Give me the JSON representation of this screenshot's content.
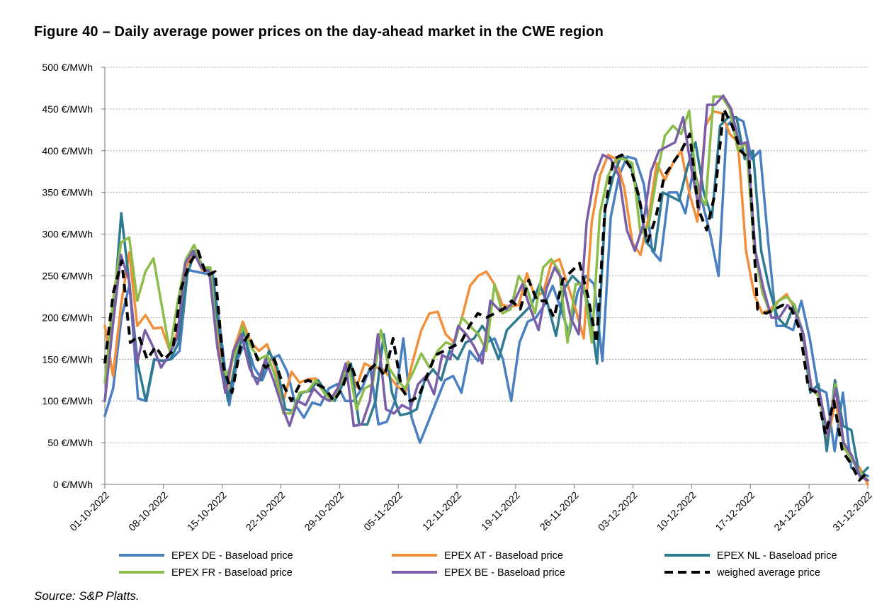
{
  "figure": {
    "title": "Figure 40 – Daily average power prices on the day-ahead market in the CWE region",
    "source": "Source: S&P Platts."
  },
  "chart_data": {
    "type": "line",
    "title": "Daily average power prices on the day-ahead market in the CWE region",
    "xlabel": "",
    "ylabel": "",
    "ylim": [
      0,
      500
    ],
    "y_ticks": [
      0,
      50,
      100,
      150,
      200,
      250,
      300,
      350,
      400,
      450,
      500
    ],
    "y_tick_labels": [
      "0 €/MWh",
      "50 €/MWh",
      "100 €/MWh",
      "150 €/MWh",
      "200 €/MWh",
      "250 €/MWh",
      "300 €/MWh",
      "350 €/MWh",
      "400 €/MWh",
      "450 €/MWh",
      "500 €/MWh"
    ],
    "x_day_range": [
      0,
      91
    ],
    "x_tick_days": [
      0,
      7,
      14,
      21,
      28,
      35,
      42,
      49,
      56,
      63,
      70,
      77,
      84,
      91
    ],
    "x_tick_labels": [
      "01-10-2022",
      "08-10-2022",
      "15-10-2022",
      "22-10-2022",
      "29-10-2022",
      "05-11-2022",
      "12-11-2022",
      "19-11-2022",
      "26-11-2022",
      "03-12-2022",
      "10-12-2022",
      "17-12-2022",
      "24-12-2022",
      "31-12-2022"
    ],
    "grid": true,
    "legend_position": "bottom",
    "series": [
      {
        "name": "EPEX DE - Baseload price",
        "color": "#4a7fc1",
        "dashed": false,
        "values": [
          82,
          115,
          200,
          240,
          103,
          100,
          150,
          148,
          150,
          160,
          257,
          255,
          253,
          252,
          180,
          95,
          150,
          172,
          140,
          125,
          150,
          155,
          135,
          95,
          80,
          98,
          95,
          115,
          120,
          100,
          100,
          115,
          140,
          72,
          75,
          100,
          175,
          80,
          50,
          75,
          100,
          125,
          130,
          110,
          160,
          148,
          170,
          175,
          150,
          100,
          170,
          195,
          200,
          215,
          238,
          210,
          180,
          230,
          250,
          240,
          148,
          320,
          370,
          393,
          390,
          360,
          280,
          268,
          350,
          350,
          325,
          380,
          340,
          300,
          250,
          430,
          440,
          435,
          390,
          400,
          290,
          190,
          190,
          185,
          220,
          175,
          115,
          110,
          40,
          110,
          20,
          15,
          10
        ]
      },
      {
        "name": "EPEX AT - Baseload price",
        "color": "#f28f3b",
        "dashed": false,
        "values": [
          190,
          130,
          215,
          278,
          190,
          203,
          187,
          188,
          160,
          185,
          260,
          278,
          257,
          255,
          170,
          110,
          165,
          195,
          170,
          160,
          168,
          140,
          100,
          135,
          122,
          126,
          127,
          112,
          105,
          120,
          147,
          117,
          145,
          140,
          140,
          130,
          118,
          110,
          150,
          185,
          205,
          207,
          180,
          170,
          200,
          238,
          250,
          255,
          240,
          215,
          213,
          215,
          253,
          225,
          230,
          265,
          270,
          240,
          210,
          175,
          315,
          370,
          395,
          390,
          355,
          290,
          275,
          320,
          385,
          365,
          385,
          400,
          350,
          315,
          430,
          447,
          445,
          420,
          410,
          280,
          228,
          205,
          210,
          220,
          228,
          210,
          180,
          115,
          110,
          50,
          100,
          50,
          30,
          20,
          0
        ]
      },
      {
        "name": "EPEX NL - Baseload price",
        "color": "#2e7a91",
        "dashed": false,
        "values": [
          100,
          200,
          325,
          240,
          145,
          100,
          150,
          148,
          150,
          170,
          250,
          280,
          260,
          255,
          180,
          100,
          150,
          185,
          130,
          125,
          160,
          140,
          90,
          88,
          110,
          112,
          125,
          110,
          100,
          120,
          145,
          72,
          72,
          100,
          180,
          110,
          83,
          85,
          90,
          125,
          138,
          125,
          160,
          150,
          170,
          175,
          190,
          175,
          150,
          185,
          195,
          205,
          215,
          240,
          215,
          178,
          235,
          250,
          240,
          215,
          145,
          330,
          370,
          395,
          385,
          350,
          290,
          280,
          350,
          345,
          340,
          380,
          410,
          350,
          320,
          430,
          440,
          440,
          390,
          400,
          280,
          235,
          200,
          190,
          215,
          185,
          110,
          120,
          40,
          125,
          70,
          65,
          10,
          20
        ]
      },
      {
        "name": "EPEX FR - Baseload price",
        "color": "#8cbd4b",
        "dashed": false,
        "values": [
          122,
          220,
          290,
          296,
          220,
          255,
          271,
          215,
          160,
          220,
          270,
          287,
          260,
          260,
          155,
          130,
          155,
          190,
          165,
          150,
          155,
          130,
          85,
          85,
          110,
          112,
          125,
          110,
          100,
          120,
          145,
          90,
          115,
          120,
          185,
          140,
          125,
          115,
          135,
          157,
          140,
          160,
          170,
          167,
          200,
          190,
          180,
          160,
          240,
          205,
          210,
          250,
          235,
          205,
          260,
          270,
          255,
          170,
          240,
          240,
          170,
          325,
          370,
          390,
          390,
          385,
          300,
          310,
          370,
          418,
          430,
          420,
          448,
          350,
          335,
          465,
          465,
          450,
          400,
          410,
          285,
          230,
          205,
          220,
          225,
          215,
          180,
          115,
          105,
          60,
          120,
          45,
          30,
          15,
          5
        ]
      },
      {
        "name": "EPEX BE - Baseload price",
        "color": "#7a5fa8",
        "dashed": false,
        "values": [
          100,
          190,
          275,
          245,
          145,
          185,
          165,
          140,
          155,
          175,
          265,
          280,
          260,
          255,
          165,
          110,
          160,
          180,
          140,
          120,
          150,
          125,
          95,
          70,
          100,
          95,
          115,
          105,
          100,
          115,
          145,
          70,
          72,
          100,
          180,
          90,
          85,
          95,
          90,
          120,
          130,
          108,
          155,
          150,
          190,
          180,
          165,
          145,
          220,
          210,
          210,
          220,
          240,
          210,
          185,
          235,
          260,
          245,
          200,
          180,
          315,
          370,
          395,
          390,
          370,
          305,
          280,
          310,
          375,
          400,
          405,
          410,
          440,
          380,
          330,
          455,
          455,
          466,
          450,
          408,
          410,
          280,
          235,
          200,
          200,
          215,
          205,
          180,
          115,
          110,
          60,
          115,
          50,
          35,
          10,
          5
        ]
      },
      {
        "name": "weighed average price",
        "color": "#000000",
        "dashed": true,
        "values": [
          145,
          230,
          268,
          170,
          178,
          150,
          165,
          150,
          160,
          235,
          265,
          280,
          250,
          255,
          140,
          110,
          165,
          180,
          150,
          140,
          150,
          120,
          100,
          120,
          125,
          120,
          115,
          100,
          115,
          145,
          115,
          135,
          145,
          130,
          175,
          115,
          100,
          105,
          130,
          155,
          160,
          165,
          170,
          190,
          205,
          200,
          205,
          210,
          220,
          210,
          245,
          220,
          220,
          200,
          245,
          255,
          265,
          225,
          170,
          330,
          390,
          395,
          380,
          345,
          290,
          320,
          370,
          385,
          400,
          420,
          330,
          305,
          350,
          450,
          430,
          400,
          390,
          210,
          205,
          210,
          215,
          210,
          185,
          115,
          110,
          60,
          100,
          40,
          25,
          5,
          15
        ]
      }
    ]
  }
}
